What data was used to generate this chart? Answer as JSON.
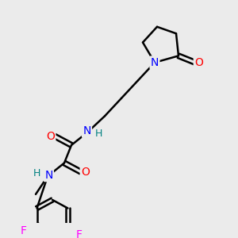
{
  "bg_color": "#ebebeb",
  "bond_color": "#000000",
  "bond_lw": 1.8,
  "atom_colors": {
    "N": "#0000ff",
    "O": "#ff0000",
    "F": "#ff00ff",
    "H_on_N": "#008080",
    "C": "#000000"
  },
  "font_size_atom": 9,
  "font_size_label": 9
}
